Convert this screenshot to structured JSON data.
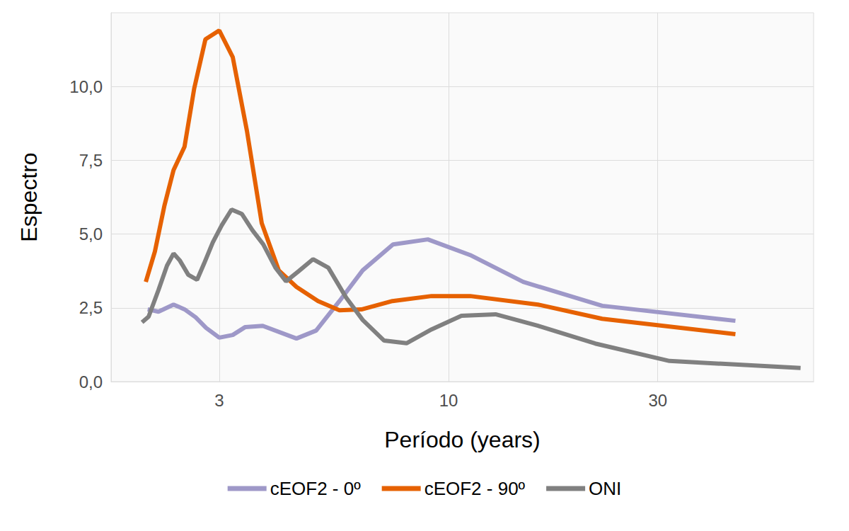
{
  "chart_data": {
    "type": "line",
    "x_label": "Período (years)",
    "y_label": "Espectro",
    "log": "x",
    "grid": true,
    "legend": "bottom",
    "xlim": [
      1.7,
      68
    ],
    "xticks": [
      3,
      10,
      30
    ],
    "ylim": [
      0,
      12.5
    ],
    "yticks": [
      {
        "value": 0,
        "label": "0,0"
      },
      {
        "value": 2.5,
        "label": "2,5"
      },
      {
        "value": 5,
        "label": "5,0"
      },
      {
        "value": 7.5,
        "label": "7,5"
      },
      {
        "value": 10,
        "label": "10,0"
      }
    ],
    "series": [
      {
        "name": "cEOF2 - 0º",
        "color": "#9e98c8",
        "x": [
          2.06,
          2.18,
          2.36,
          2.5,
          2.65,
          2.8,
          3.0,
          3.22,
          3.44,
          3.77,
          4.5,
          4.99,
          5.64,
          6.37,
          7.47,
          8.97,
          11.2,
          14.8,
          22.4,
          45.1
        ],
        "values": [
          2.45,
          2.37,
          2.61,
          2.45,
          2.18,
          1.82,
          1.49,
          1.58,
          1.85,
          1.89,
          1.46,
          1.73,
          2.73,
          3.77,
          4.65,
          4.82,
          4.29,
          3.38,
          2.57,
          2.06
        ]
      },
      {
        "name": "cEOF2 - 90º",
        "color": "#e66101",
        "x": [
          2.04,
          2.14,
          2.25,
          2.36,
          2.5,
          2.63,
          2.79,
          3.0,
          3.22,
          3.47,
          3.75,
          4.1,
          4.5,
          5.04,
          5.64,
          6.35,
          7.45,
          9.15,
          11.2,
          16.0,
          22.4,
          45.1
        ],
        "values": [
          3.38,
          4.41,
          5.97,
          7.17,
          7.96,
          9.93,
          11.6,
          11.9,
          11.0,
          8.49,
          5.37,
          3.77,
          3.21,
          2.73,
          2.42,
          2.45,
          2.73,
          2.9,
          2.9,
          2.61,
          2.13,
          1.61
        ]
      },
      {
        "name": "ONI",
        "color": "#808080",
        "x": [
          2.0,
          2.07,
          2.18,
          2.28,
          2.36,
          2.44,
          2.55,
          2.67,
          2.77,
          2.9,
          3.04,
          3.2,
          3.38,
          3.57,
          3.78,
          4.03,
          4.26,
          4.55,
          4.91,
          5.32,
          5.84,
          6.37,
          7.13,
          8.02,
          9.15,
          10.7,
          12.8,
          16.0,
          21.6,
          31.9,
          63.5
        ],
        "values": [
          2.01,
          2.2,
          3.1,
          3.93,
          4.34,
          4.1,
          3.62,
          3.45,
          4.0,
          4.72,
          5.3,
          5.83,
          5.68,
          5.13,
          4.65,
          3.86,
          3.4,
          3.74,
          4.15,
          3.86,
          2.85,
          2.09,
          1.39,
          1.3,
          1.77,
          2.23,
          2.28,
          1.89,
          1.29,
          0.7,
          0.46
        ]
      }
    ]
  }
}
